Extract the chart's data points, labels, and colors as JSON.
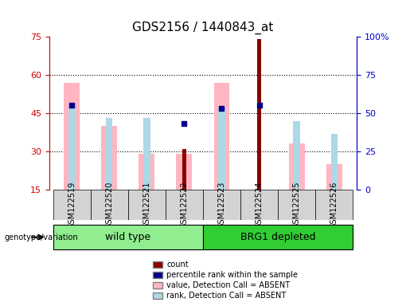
{
  "title": "GDS2156 / 1440843_at",
  "samples": [
    "GSM122519",
    "GSM122520",
    "GSM122521",
    "GSM122522",
    "GSM122523",
    "GSM122524",
    "GSM122525",
    "GSM122526"
  ],
  "groups": [
    "wild type",
    "wild type",
    "wild type",
    "wild type",
    "BRG1 depleted",
    "BRG1 depleted",
    "BRG1 depleted",
    "BRG1 depleted"
  ],
  "group_labels": [
    "wild type",
    "BRG1 depleted"
  ],
  "group_colors": [
    "#90EE90",
    "#32CD32"
  ],
  "ylim_left": [
    15,
    75
  ],
  "ylim_right": [
    0,
    100
  ],
  "yticks_left": [
    15,
    30,
    45,
    60,
    75
  ],
  "yticks_right": [
    0,
    25,
    50,
    75,
    100
  ],
  "pink_bar_heights": [
    57,
    40,
    29,
    29,
    57,
    0,
    33,
    25
  ],
  "pink_bar_base": 15,
  "light_blue_bar_heights": [
    48,
    43,
    43,
    0,
    47,
    0,
    42,
    37
  ],
  "light_blue_bar_base": 15,
  "red_bar_heights": [
    0,
    0,
    0,
    31,
    0,
    74,
    0,
    0
  ],
  "red_bar_base": 15,
  "blue_dot_y": [
    48,
    0,
    0,
    41,
    47,
    48,
    0,
    0
  ],
  "colors": {
    "pink_bar": "#FFB6C1",
    "light_blue_bar": "#ADD8E6",
    "red_bar": "#8B0000",
    "blue_dot": "#00008B",
    "left_axis": "#CC0000",
    "right_axis": "#0000CC",
    "grid": "black",
    "bg_plot": "white",
    "bg_xaxis": "#C8C8C8",
    "bg_group_wt": "#90EE90",
    "bg_group_brg": "#00CC00"
  },
  "legend_items": [
    "count",
    "percentile rank within the sample",
    "value, Detection Call = ABSENT",
    "rank, Detection Call = ABSENT"
  ],
  "legend_colors": [
    "#8B0000",
    "#00008B",
    "#FFB6C1",
    "#ADD8E6"
  ],
  "legend_markers": [
    "s",
    "s",
    "s",
    "s"
  ]
}
